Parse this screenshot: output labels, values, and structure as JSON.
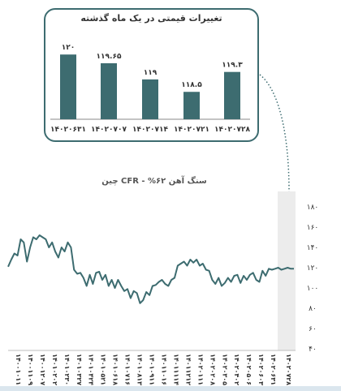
{
  "chart_data": [
    {
      "type": "bar",
      "title": "تغییرات قیمتی در یک ماه گذشته",
      "categories": [
        "۱۴۰۲۰۶۳۱",
        "۱۴۰۲۰۷۰۷",
        "۱۴۰۲۰۷۱۴",
        "۱۴۰۲۰۷۲۱",
        "۱۴۰۲۰۷۲۸"
      ],
      "values": [
        120,
        119.65,
        119,
        118.5,
        119.3
      ],
      "value_labels": [
        "۱۲۰",
        "۱۱۹.۶۵",
        "۱۱۹",
        "۱۱۸.۵",
        "۱۱۹.۳"
      ],
      "ylim": [
        117.4,
        120.3
      ],
      "color": "#3d6c70"
    },
    {
      "type": "line",
      "title": "سنگ آهن ۶۲% - CFR چین",
      "ylim": [
        40,
        180
      ],
      "yticks": [
        40,
        60,
        80,
        100,
        120,
        140,
        160,
        180
      ],
      "ytick_labels": [
        "۴۰",
        "۶۰",
        "۸۰",
        "۱۰۰",
        "۱۲۰",
        "۱۴۰",
        "۱۶۰",
        "۱۸۰"
      ],
      "xtick_labels": [
        "۱۴۰۰۱۰۱۱",
        "۱۴۰۰۱۱۰۹",
        "۱۴۰۰۱۲۰۷",
        "۱۴۰۱۰۲۰۲",
        "۱۴۰۱۰۲۳۰",
        "۱۴۰۱۰۳۲۷",
        "۱۴۰۱۰۴۲۴",
        "۱۴۰۱۰۵۲۱",
        "۱۴۰۱۰۶۱۸",
        "۱۴۰۱۰۷۱۶",
        "۱۴۰۱۰۸۱۳",
        "۱۴۰۱۰۹۱۱",
        "۱۴۰۱۱۰۱۶",
        "۱۴۰۱۱۱۱۴",
        "۱۴۰۱۱۲۱۲",
        "۱۴۰۲۰۱۱۱",
        "۱۴۰۲۰۲۰۸",
        "۱۴۰۲۰۳۰۵",
        "۱۴۰۲۰۴۰۲",
        "۱۴۰۲۰۵۰۶",
        "۱۴۰۲۰۶۰۳",
        "۱۴۰۲۰۶۳۱",
        "۱۴۰۲۰۷۲۸"
      ],
      "values": [
        121,
        128,
        134,
        132,
        148,
        145,
        126,
        140,
        150,
        148,
        152,
        150,
        148,
        140,
        145,
        136,
        130,
        140,
        136,
        145,
        140,
        118,
        114,
        115,
        110,
        102,
        113,
        104,
        115,
        116,
        108,
        113,
        102,
        108,
        100,
        108,
        102,
        97,
        99,
        90,
        97,
        95,
        85,
        88,
        96,
        93,
        102,
        103,
        106,
        108,
        104,
        102,
        108,
        110,
        122,
        124,
        126,
        122,
        128,
        125,
        128,
        122,
        124,
        118,
        117,
        108,
        104,
        110,
        102,
        105,
        110,
        106,
        112,
        113,
        105,
        112,
        108,
        113,
        115,
        108,
        106,
        117,
        112,
        119,
        118,
        119,
        120,
        118,
        119,
        120,
        119,
        119
      ],
      "highlight": "last month shaded",
      "line_color": "#3d6c70",
      "grid": false
    }
  ]
}
